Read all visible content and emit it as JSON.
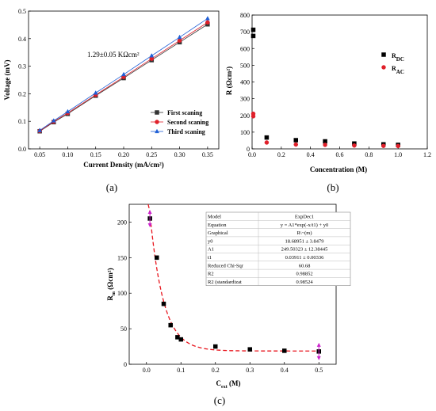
{
  "panel_labels": [
    "(a)",
    "(b)",
    "(c)"
  ],
  "colors": {
    "first": "#333333",
    "second": "#e0202a",
    "third": "#1f5fd6",
    "rdc": "#000000",
    "rac": "#e0202a",
    "fit": "#e8141c",
    "arrow": "#cc22cc"
  },
  "chart_data": [
    {
      "type": "line",
      "title": "",
      "xlabel": "Current Density (mA/cm²)",
      "ylabel": "Voltage (mV)",
      "xlim": [
        0.03,
        0.37
      ],
      "ylim": [
        0.0,
        0.5
      ],
      "xticks": [
        "0.05",
        "0.10",
        "0.15",
        "0.20",
        "0.25",
        "0.30",
        "0.35"
      ],
      "yticks": [
        "0.0",
        "0.1",
        "0.2",
        "0.3",
        "0.4",
        "0.5"
      ],
      "annotation": "1.29±0.05 KΩcm²",
      "legend_position": "bottom-right",
      "x": [
        0.05,
        0.075,
        0.1,
        0.15,
        0.2,
        0.25,
        0.3,
        0.35
      ],
      "series": [
        {
          "name": "First scaning",
          "marker": "square",
          "values": [
            0.064,
            0.097,
            0.127,
            0.193,
            0.257,
            0.322,
            0.387,
            0.452
          ]
        },
        {
          "name": "Second scaning",
          "marker": "circle",
          "values": [
            0.065,
            0.099,
            0.13,
            0.196,
            0.261,
            0.327,
            0.393,
            0.459
          ]
        },
        {
          "name": "Third scaning",
          "marker": "triangle",
          "values": [
            0.067,
            0.102,
            0.135,
            0.203,
            0.27,
            0.338,
            0.405,
            0.473
          ]
        }
      ]
    },
    {
      "type": "scatter",
      "title": "",
      "xlabel": "Concentration (M)",
      "ylabel": "R (Ωcm²)",
      "xlim": [
        0.0,
        1.2
      ],
      "ylim": [
        0,
        800
      ],
      "xticks": [
        "0.0",
        "0.2",
        "0.4",
        "0.6",
        "0.8",
        "1.0",
        "1.2"
      ],
      "yticks": [
        "0",
        "100",
        "200",
        "300",
        "400",
        "500",
        "600",
        "700",
        "800"
      ],
      "legend_position": "right",
      "series": [
        {
          "name": "R_DC",
          "label_main": "R",
          "label_sub": "DC",
          "marker": "square",
          "x": [
            0.0,
            0.0,
            0.1,
            0.3,
            0.5,
            0.7,
            0.9,
            1.0
          ],
          "values": [
            712,
            675,
            68,
            52,
            45,
            32,
            27,
            24
          ]
        },
        {
          "name": "R_AC",
          "label_main": "R",
          "label_sub": "AC",
          "marker": "circle",
          "x": [
            0.0,
            0.0,
            0.1,
            0.3,
            0.5,
            0.7,
            0.9,
            1.0
          ],
          "values": [
            210,
            195,
            38,
            26,
            24,
            20,
            18,
            17
          ]
        }
      ]
    },
    {
      "type": "scatter",
      "title": "",
      "xlabel_main": "C",
      "xlabel_sub": "ext",
      "xlabel_rest": " (M)",
      "ylabel_main": "R",
      "ylabel_sub": "m",
      "ylabel_rest": " (Ωcm²)",
      "xlim": [
        -0.05,
        0.55
      ],
      "ylim": [
        0,
        225
      ],
      "xticks": [
        "0.0",
        "0.1",
        "0.2",
        "0.3",
        "0.4",
        "0.5"
      ],
      "yticks": [
        "0",
        "50",
        "100",
        "150",
        "200"
      ],
      "series": [
        {
          "name": "data",
          "marker": "square",
          "x": [
            0.01,
            0.03,
            0.05,
            0.07,
            0.09,
            0.1,
            0.2,
            0.3,
            0.4,
            0.5
          ],
          "values": [
            205,
            150,
            85,
            55,
            38,
            35,
            25,
            21,
            19,
            18
          ]
        }
      ],
      "fit": {
        "y0": 18.68951,
        "A1": 249.50323,
        "t1": 0.03911
      },
      "fit_table": [
        [
          "Model",
          "ExpDec1"
        ],
        [
          "Equation",
          "y = A1*exp(-x/t1) + y0"
        ],
        [
          "Graphical",
          "R\\~(m)"
        ],
        [
          "y0",
          "18.68951 ± 3.8479"
        ],
        [
          "A1",
          "249.50323 ± 12.38445"
        ],
        [
          "t1",
          "0.03911 ± 0.00336"
        ],
        [
          "Reduced Chi-Sqr",
          "60.68"
        ],
        [
          "R2",
          "0.98852"
        ],
        [
          "R2 (standardizat",
          "0.98524"
        ]
      ]
    }
  ]
}
